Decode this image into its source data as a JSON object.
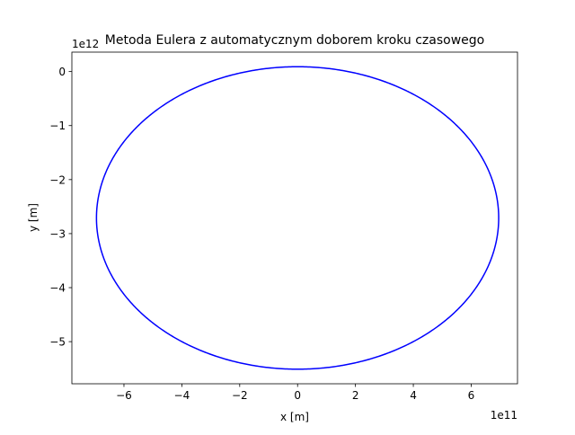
{
  "chart_data": {
    "type": "line",
    "title": "Metoda Eulera z automatycznym doborem kroku czasowego",
    "xlabel": "x [m]",
    "ylabel": "y [m]",
    "x_offset_label": "1e11",
    "y_offset_label": "1e12",
    "xlim": [
      -780000000000.0,
      760000000000.0
    ],
    "ylim": [
      -5780000000000.0,
      360000000000.0
    ],
    "x_ticks": [
      {
        "value": -600000000000.0,
        "label": "−6"
      },
      {
        "value": -400000000000.0,
        "label": "−4"
      },
      {
        "value": -200000000000.0,
        "label": "−2"
      },
      {
        "value": 0,
        "label": "0"
      },
      {
        "value": 200000000000.0,
        "label": "2"
      },
      {
        "value": 400000000000.0,
        "label": "4"
      },
      {
        "value": 600000000000.0,
        "label": "6"
      }
    ],
    "y_ticks": [
      {
        "value": 0,
        "label": "0"
      },
      {
        "value": -1000000000000.0,
        "label": "−1"
      },
      {
        "value": -2000000000000.0,
        "label": "−2"
      },
      {
        "value": -3000000000000.0,
        "label": "−3"
      },
      {
        "value": -4000000000000.0,
        "label": "−4"
      },
      {
        "value": -5000000000000.0,
        "label": "−5"
      }
    ],
    "grid": false,
    "series": [
      {
        "color": "#0000ff",
        "shape": "ellipse",
        "center": [
          0,
          -2710000000000.0
        ],
        "semi_axis_x": 695000000000.0,
        "semi_axis_y": 2800000000000.0,
        "x_min": -695000000000.0,
        "x_max": 695000000000.0,
        "y_min": -5510000000000.0,
        "y_max": 90000000000.0
      }
    ]
  }
}
